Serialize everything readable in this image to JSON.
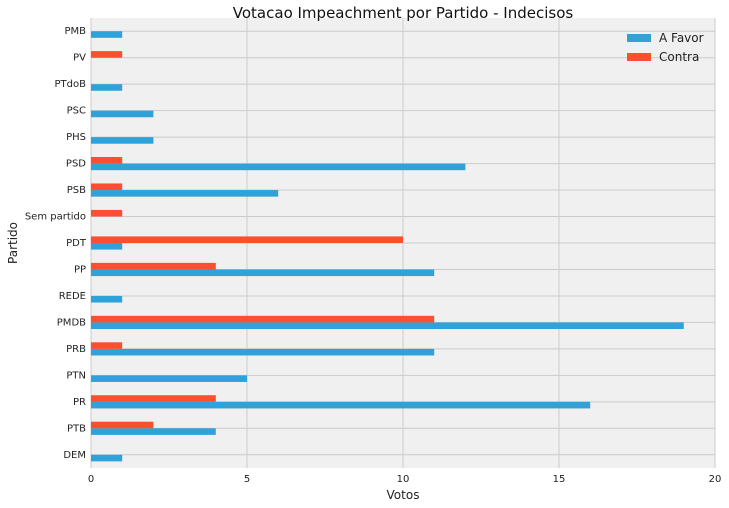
{
  "chart_data": {
    "type": "bar",
    "orientation": "horizontal",
    "title": "Votacao Impeachment por Partido - Indecisos",
    "xlabel": "Votos",
    "ylabel": "Partido",
    "xlim": [
      0,
      20
    ],
    "xticks": [
      0,
      5,
      10,
      15,
      20
    ],
    "grid": true,
    "legend_position": "top-right",
    "categories": [
      "DEM",
      "PTB",
      "PR",
      "PTN",
      "PRB",
      "PMDB",
      "REDE",
      "PP",
      "PDT",
      "Sem partido",
      "PSB",
      "PSD",
      "PHS",
      "PSC",
      "PTdoB",
      "PV",
      "PMB"
    ],
    "series": [
      {
        "name": "A Favor",
        "color": "#30a2da",
        "values": [
          1,
          4,
          16,
          5,
          11,
          19,
          1,
          11,
          1,
          0,
          6,
          12,
          2,
          2,
          1,
          0,
          1
        ]
      },
      {
        "name": "Contra",
        "color": "#fc4f30",
        "values": [
          0,
          2,
          4,
          0,
          1,
          11,
          0,
          4,
          10,
          1,
          1,
          1,
          0,
          0,
          0,
          1,
          0
        ]
      }
    ]
  }
}
